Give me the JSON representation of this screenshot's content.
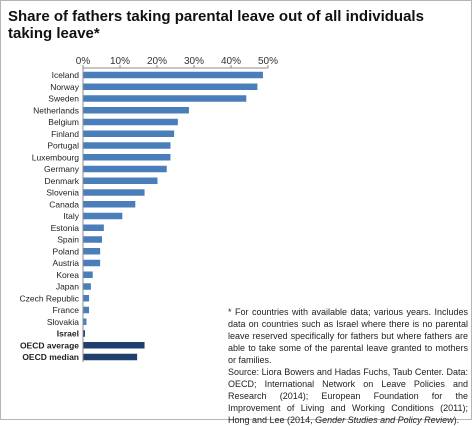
{
  "title": "Share of fathers taking parental leave out of all individuals taking leave*",
  "chart_data": {
    "type": "bar",
    "orientation": "horizontal",
    "x_ticks": [
      "0%",
      "10%",
      "20%",
      "30%",
      "40%",
      "50%"
    ],
    "xlim": [
      0,
      50
    ],
    "categories": [
      "Iceland",
      "Norway",
      "Sweden",
      "Netherlands",
      "Belgium",
      "Finland",
      "Portugal",
      "Luxembourg",
      "Germany",
      "Denmark",
      "Slovenia",
      "Canada",
      "Italy",
      "Estonia",
      "Spain",
      "Poland",
      "Austria",
      "Korea",
      "Japan",
      "Czech Republic",
      "France",
      "Slovakia",
      "Israel",
      "OECD average",
      "OECD median"
    ],
    "values": [
      48.5,
      47,
      44,
      28.5,
      25.5,
      24.5,
      23.5,
      23.5,
      22.5,
      20,
      16.5,
      14,
      10.5,
      5.5,
      5,
      4.5,
      4.5,
      2.5,
      2,
      1.5,
      1.5,
      0.8,
      0.4,
      16.5,
      14.5
    ],
    "bold_categories": [
      "Israel",
      "OECD average",
      "OECD median"
    ],
    "colors": {
      "bar": "#4a7ebb",
      "highlight": "#1f3f6e",
      "axis": "#8c8c8c"
    }
  },
  "note": {
    "text": "* For countries with available data; various years. Includes data on countries such as Israel where there is no parental leave reserved specifically for fathers but where fathers are able to take some of the parental leave granted to mothers or families.",
    "source_prefix": "Source: Liora Bowers and Hadas Fuchs, Taub Center. Data: OECD; International Network on Leave Policies and Research (2014); European Foundation for the Improvement of Living and Working Conditions (2011); Hong and Lee (2014,",
    "source_italic": "Gender Studies and Policy Review",
    "source_suffix": ")."
  }
}
